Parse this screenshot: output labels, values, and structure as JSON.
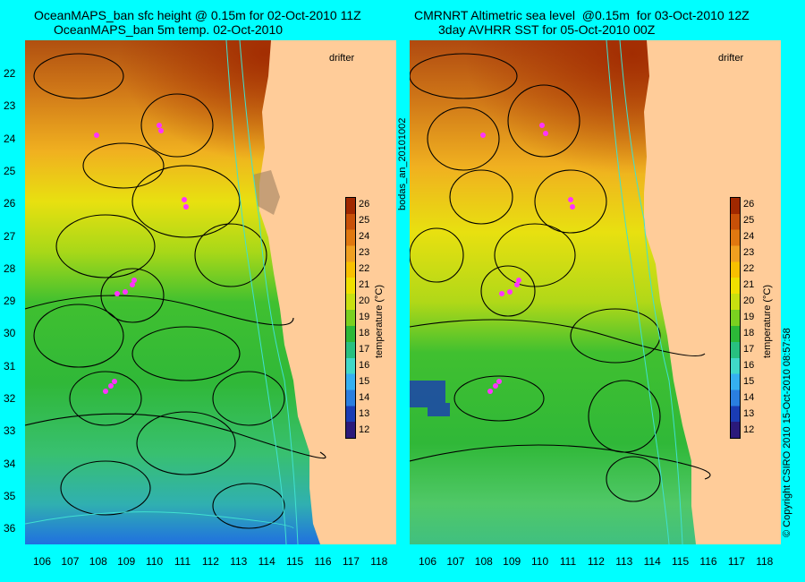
{
  "titles": {
    "left_line1": "OceanMAPS_ban sfc height @ 0.15m for 02-Oct-2010 11Z",
    "left_line2": "OceanMAPS_ban 5m temp. 02-Oct-2010",
    "right_line1": "CMRNRT Altimetric sea level  @0.15m  for 03-Oct-2010 12Z",
    "right_line2": "3day AVHRR SST for 05-Oct-2010 00Z"
  },
  "side_text": {
    "run_id": "bodas_an_20101002",
    "copyright": "© Copyright CSIRO 2010   15-Oct-2010 08:57:58"
  },
  "legend": {
    "drifter_label": "drifter",
    "drifter_color": "#ff33ff"
  },
  "colorbar": {
    "label": "temperature (°C)",
    "ticks": [
      "26",
      "25",
      "24",
      "23",
      "22",
      "21",
      "20",
      "19",
      "18",
      "17",
      "16",
      "15",
      "14",
      "13",
      "12"
    ],
    "min": 11.5,
    "max": 26.5,
    "colors": [
      "#2b1a7a",
      "#1a3cb4",
      "#2a7ee0",
      "#35b0f0",
      "#40d8c8",
      "#28c080",
      "#2cb838",
      "#7ad020",
      "#c8e010",
      "#f0e000",
      "#f8c000",
      "#f0a020",
      "#e07810",
      "#c85008",
      "#a02800"
    ]
  },
  "axes": {
    "lat_labels": [
      "22",
      "23",
      "24",
      "25",
      "26",
      "27",
      "28",
      "29",
      "30",
      "31",
      "32",
      "33",
      "34",
      "35",
      "36"
    ],
    "lon_labels": [
      "106",
      "107",
      "108",
      "109",
      "110",
      "111",
      "112",
      "113",
      "114",
      "115",
      "116",
      "117",
      "118"
    ],
    "lat_range": [
      21.4,
      36.6
    ],
    "lon_range": [
      105.3,
      118.3
    ]
  },
  "colors": {
    "background": "#00ffff",
    "land": "#ffcc99",
    "contour": "#000000",
    "isobath": "#40e0d0",
    "track": "#ff33ff"
  }
}
